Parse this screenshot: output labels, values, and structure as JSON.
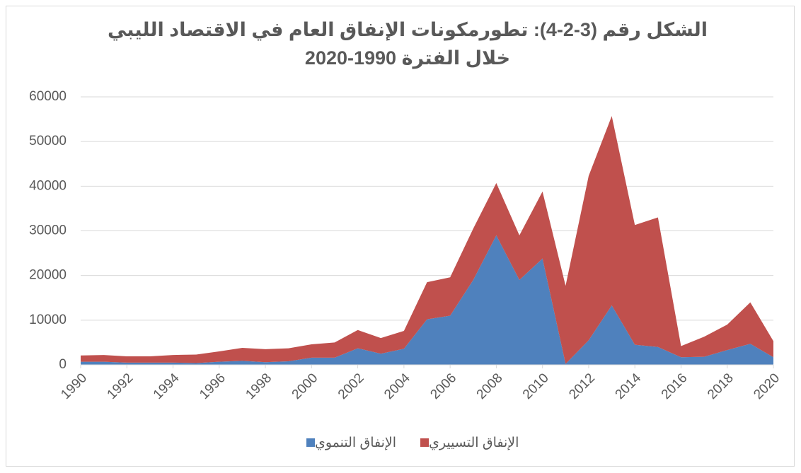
{
  "chart_data": {
    "type": "area",
    "stacked": true,
    "title": [
      "الشكل رقم (3-2-4): تطورمكونات الإنفاق العام في الاقتصاد الليبي",
      "خلال الفترة 1990-2020"
    ],
    "x": [
      1990,
      1991,
      1992,
      1993,
      1994,
      1995,
      1996,
      1997,
      1998,
      1999,
      2000,
      2001,
      2002,
      2003,
      2004,
      2005,
      2006,
      2007,
      2008,
      2009,
      2010,
      2011,
      2012,
      2013,
      2014,
      2015,
      2016,
      2017,
      2018,
      2019,
      2020
    ],
    "series": [
      {
        "name": "الإنفاق التنموي",
        "color": "#4f81bd",
        "values": [
          700,
          700,
          500,
          500,
          500,
          400,
          700,
          900,
          600,
          800,
          1600,
          1600,
          3700,
          2500,
          3600,
          10200,
          11000,
          19000,
          29000,
          19000,
          23800,
          200,
          5500,
          13300,
          4500,
          4000,
          1700,
          1800,
          3300,
          4700,
          1700
        ]
      },
      {
        "name": "الإنفاق التسييري",
        "color": "#c0504d",
        "values": [
          1400,
          1500,
          1400,
          1400,
          1700,
          1900,
          2300,
          2900,
          2900,
          2900,
          3000,
          3400,
          4100,
          3500,
          4000,
          8300,
          8600,
          11500,
          11700,
          10000,
          15000,
          17500,
          36800,
          42400,
          26800,
          29000,
          2500,
          4500,
          5700,
          9300,
          3600
        ]
      }
    ],
    "xlim": [
      1990,
      2020
    ],
    "xticks": [
      1990,
      1992,
      1994,
      1996,
      1998,
      2000,
      2002,
      2004,
      2006,
      2008,
      2010,
      2012,
      2014,
      2016,
      2018,
      2020
    ],
    "ylim": [
      0,
      60000
    ],
    "yticks": [
      0,
      10000,
      20000,
      30000,
      40000,
      50000,
      60000
    ],
    "grid": true,
    "legend": "bottom"
  }
}
